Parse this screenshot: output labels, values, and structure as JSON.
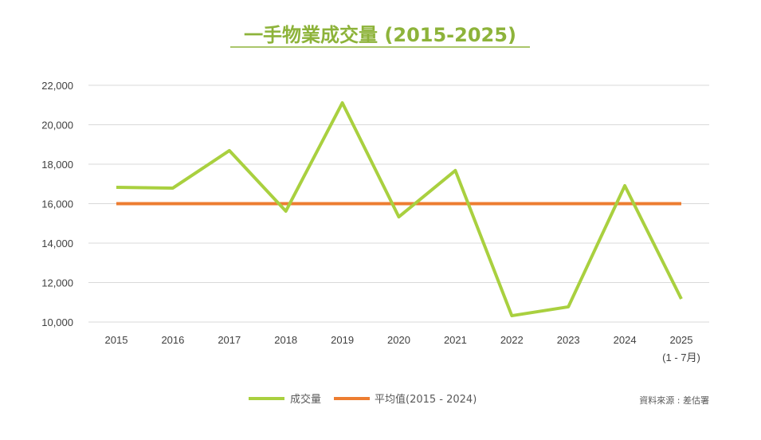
{
  "chart_data": {
    "type": "line",
    "title": "一手物業成交量 (2015-2025)",
    "xlabel": "",
    "ylabel": "",
    "categories": [
      "2015",
      "2016",
      "2017",
      "2018",
      "2019",
      "2020",
      "2021",
      "2022",
      "2023",
      "2024",
      "2025"
    ],
    "category_sublabels": {
      "2025": "(1 - 7月)"
    },
    "yticks": [
      "10,000",
      "12,000",
      "14,000",
      "16,000",
      "18,000",
      "20,000",
      "22,000"
    ],
    "ylim": [
      10000,
      22000
    ],
    "grid": true,
    "legend_placement": "bottom",
    "series": [
      {
        "name": "成交量",
        "color": "#a9d03f",
        "values": [
          16830,
          16790,
          18690,
          15620,
          21110,
          15330,
          17680,
          10320,
          10770,
          16910,
          11170
        ]
      },
      {
        "name": "平均值(2015 - 2024)",
        "color": "#ed7d31",
        "values": [
          16000,
          16000,
          16000,
          16000,
          16000,
          16000,
          16000,
          16000,
          16000,
          16000,
          16000
        ]
      }
    ],
    "source": "資料來源 : 差估署",
    "title_color": "#8db33a"
  }
}
